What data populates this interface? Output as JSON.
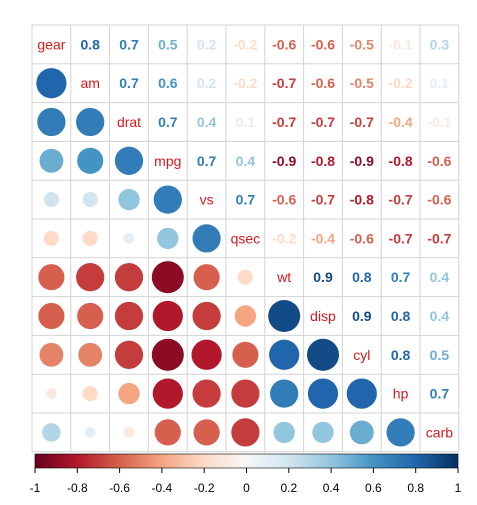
{
  "chart_data": {
    "type": "heatmap",
    "variables": [
      "gear",
      "am",
      "drat",
      "mpg",
      "vs",
      "qsec",
      "wt",
      "disp",
      "cyl",
      "hp",
      "carb"
    ],
    "matrix": [
      [
        1.0,
        0.8,
        0.7,
        0.5,
        0.2,
        -0.2,
        -0.6,
        -0.6,
        -0.5,
        -0.1,
        0.3
      ],
      [
        0.8,
        1.0,
        0.7,
        0.6,
        0.2,
        -0.2,
        -0.7,
        -0.6,
        -0.5,
        -0.2,
        0.1
      ],
      [
        0.7,
        0.7,
        1.0,
        0.7,
        0.4,
        0.1,
        -0.7,
        -0.7,
        -0.7,
        -0.4,
        -0.1
      ],
      [
        0.5,
        0.6,
        0.7,
        1.0,
        0.7,
        0.4,
        -0.9,
        -0.8,
        -0.9,
        -0.8,
        -0.6
      ],
      [
        0.2,
        0.2,
        0.4,
        0.7,
        1.0,
        0.7,
        -0.6,
        -0.7,
        -0.8,
        -0.7,
        -0.6
      ],
      [
        -0.2,
        -0.2,
        0.1,
        0.4,
        0.7,
        1.0,
        -0.2,
        -0.4,
        -0.6,
        -0.7,
        -0.7
      ],
      [
        -0.6,
        -0.7,
        -0.7,
        -0.9,
        -0.6,
        -0.2,
        1.0,
        0.9,
        0.8,
        0.7,
        0.4
      ],
      [
        -0.6,
        -0.6,
        -0.7,
        -0.8,
        -0.7,
        -0.4,
        0.9,
        1.0,
        0.9,
        0.8,
        0.4
      ],
      [
        -0.5,
        -0.5,
        -0.7,
        -0.9,
        -0.8,
        -0.6,
        0.8,
        0.9,
        1.0,
        0.8,
        0.5
      ],
      [
        -0.1,
        -0.2,
        -0.4,
        -0.8,
        -0.7,
        -0.7,
        0.7,
        0.8,
        0.8,
        1.0,
        0.7
      ],
      [
        0.3,
        0.1,
        -0.1,
        -0.6,
        -0.6,
        -0.7,
        0.4,
        0.4,
        0.5,
        0.7,
        1.0
      ]
    ],
    "upper_labels": [
      [
        "0.8",
        "0.7",
        "0.5",
        "0.2",
        "-0.2",
        "-0.6",
        "-0.6",
        "-0.5",
        "-0.1",
        "0.3"
      ],
      [
        "0.7",
        "0.6",
        "0.2",
        "-0.2",
        "-0.7",
        "-0.6",
        "-0.5",
        "-0.2",
        "0.1"
      ],
      [
        "0.7",
        "0.4",
        "0.1",
        "-0.7",
        "-0.7",
        "-0.7",
        "-0.4",
        "-0.1"
      ],
      [
        "0.7",
        "0.4",
        "-0.9",
        "-0.8",
        "-0.9",
        "-0.8",
        "-0.6"
      ],
      [
        "0.7",
        "-0.6",
        "-0.7",
        "-0.8",
        "-0.7",
        "-0.6"
      ],
      [
        "-0.2",
        "-0.4",
        "-0.6",
        "-0.7",
        "-0.7"
      ],
      [
        "0.9",
        "0.8",
        "0.7",
        "0.4"
      ],
      [
        "0.9",
        "0.8",
        "0.4"
      ],
      [
        "0.8",
        "0.5"
      ],
      [
        "0.7"
      ],
      []
    ],
    "upper": "number",
    "lower": "circle",
    "colorbar": {
      "range": [
        -1,
        1
      ],
      "ticks": [
        "-1",
        "-0.8",
        "-0.6",
        "-0.4",
        "-0.2",
        "0",
        "0.2",
        "0.4",
        "0.6",
        "0.8",
        "1"
      ]
    },
    "colors": {
      "negative": "#67001f",
      "neutral": "#f7f7f7",
      "positive": "#053061",
      "label": "#d7191c",
      "grid": "#d3d3d3"
    }
  }
}
